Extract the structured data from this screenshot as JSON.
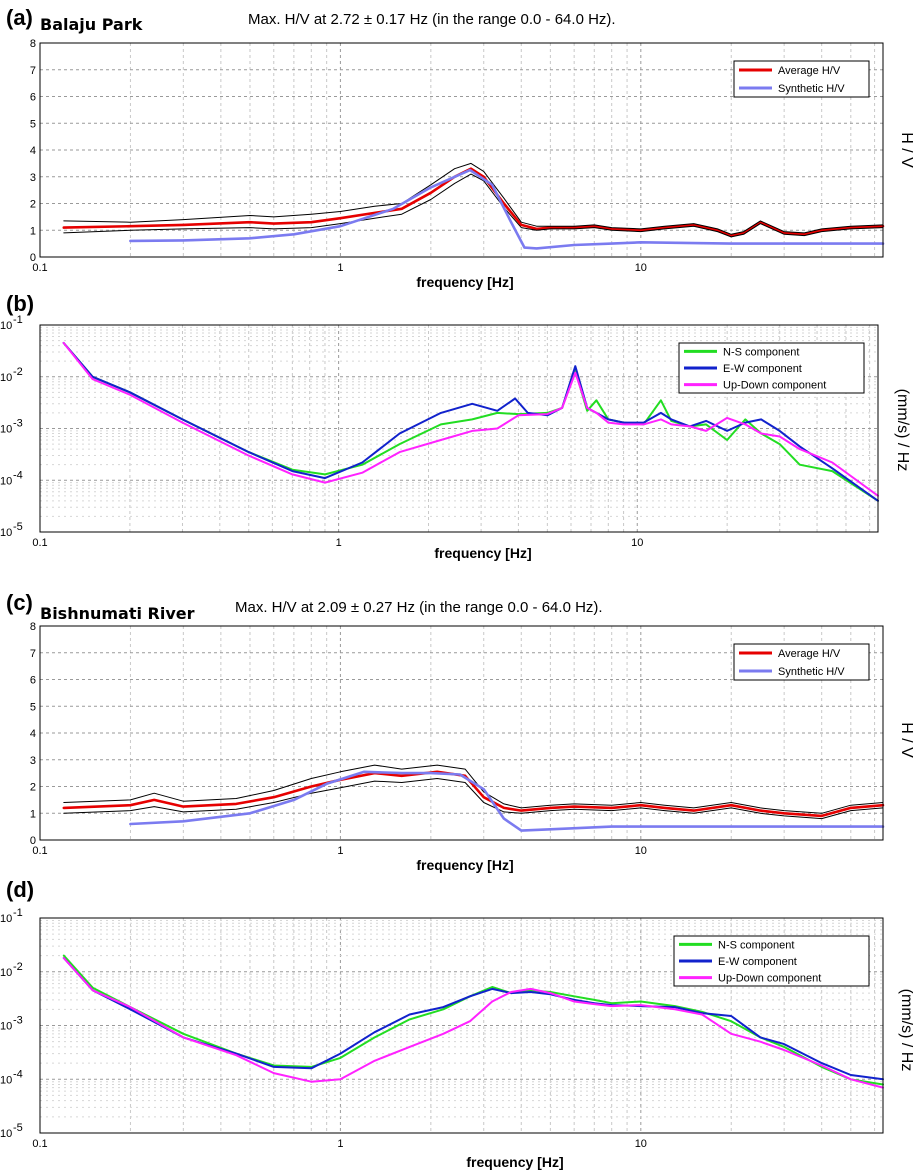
{
  "chart_data": [
    {
      "panel_label": "(a)",
      "site": "Balaju Park",
      "title": "Max. H/V at 2.72 ± 0.17 Hz (in the range 0.0 - 64.0 Hz).",
      "type": "line",
      "x_scale": "log",
      "y_scale": "linear",
      "xlabel": "frequency [Hz]",
      "ylabel": "H / V",
      "xlim": [
        0.1,
        64
      ],
      "ylim": [
        0,
        8
      ],
      "xticks": [
        "0.1",
        "1",
        "10"
      ],
      "yticks": [
        "0",
        "1",
        "2",
        "3",
        "4",
        "5",
        "6",
        "7",
        "8"
      ],
      "grid": true,
      "legend_position": "top-right",
      "series": [
        {
          "name": "Average H/V",
          "role": "legend",
          "color": "#e60000",
          "x": [
            0.12,
            0.2,
            0.3,
            0.5,
            0.6,
            0.8,
            1.0,
            1.3,
            1.6,
            2.0,
            2.4,
            2.72,
            3.0,
            3.5,
            4.0,
            4.5,
            5,
            6,
            7,
            8,
            10,
            12,
            15,
            18,
            20,
            22,
            25,
            30,
            35,
            40,
            50,
            64
          ],
          "y": [
            1.1,
            1.15,
            1.2,
            1.3,
            1.25,
            1.3,
            1.45,
            1.65,
            1.8,
            2.4,
            3.0,
            3.3,
            3.0,
            2.0,
            1.2,
            1.05,
            1.1,
            1.1,
            1.15,
            1.05,
            1.0,
            1.1,
            1.2,
            1.0,
            0.8,
            0.9,
            1.3,
            0.9,
            0.85,
            1.0,
            1.1,
            1.15
          ]
        },
        {
          "name": "+std",
          "role": "bound",
          "color": "#000000",
          "x": [
            0.12,
            0.2,
            0.3,
            0.5,
            0.6,
            0.8,
            1.0,
            1.3,
            1.6,
            2.0,
            2.4,
            2.72,
            3.0,
            3.5,
            4.0,
            4.5,
            5,
            6,
            7,
            8,
            10,
            12,
            15,
            18,
            20,
            22,
            25,
            30,
            35,
            40,
            50,
            64
          ],
          "y": [
            1.35,
            1.3,
            1.4,
            1.55,
            1.5,
            1.6,
            1.7,
            1.9,
            2.0,
            2.7,
            3.3,
            3.5,
            3.2,
            2.2,
            1.3,
            1.15,
            1.15,
            1.15,
            1.2,
            1.1,
            1.05,
            1.15,
            1.25,
            1.05,
            0.85,
            0.95,
            1.35,
            0.95,
            0.9,
            1.05,
            1.15,
            1.2
          ]
        },
        {
          "name": "-std",
          "role": "bound",
          "color": "#000000",
          "x": [
            0.12,
            0.2,
            0.3,
            0.5,
            0.6,
            0.8,
            1.0,
            1.3,
            1.6,
            2.0,
            2.4,
            2.72,
            3.0,
            3.5,
            4.0,
            4.5,
            5,
            6,
            7,
            8,
            10,
            12,
            15,
            18,
            20,
            22,
            25,
            30,
            35,
            40,
            50,
            64
          ],
          "y": [
            0.9,
            1.0,
            1.05,
            1.1,
            1.05,
            1.1,
            1.25,
            1.45,
            1.6,
            2.15,
            2.75,
            3.1,
            2.85,
            1.85,
            1.1,
            1.0,
            1.05,
            1.05,
            1.1,
            1.0,
            0.95,
            1.05,
            1.15,
            0.95,
            0.75,
            0.85,
            1.25,
            0.85,
            0.8,
            0.95,
            1.05,
            1.1
          ]
        },
        {
          "name": "Synthetic H/V",
          "role": "legend",
          "color": "#7b7bf0",
          "x": [
            0.2,
            0.3,
            0.5,
            0.7,
            1.0,
            1.5,
            2.0,
            2.7,
            3.2,
            3.7,
            4.1,
            4.5,
            6,
            8,
            10,
            15,
            20,
            30,
            64
          ],
          "y": [
            0.6,
            0.62,
            0.7,
            0.85,
            1.15,
            1.8,
            2.6,
            3.25,
            2.7,
            1.3,
            0.35,
            0.32,
            0.45,
            0.5,
            0.55,
            0.52,
            0.5,
            0.5,
            0.5
          ]
        }
      ]
    },
    {
      "panel_label": "(b)",
      "type": "line",
      "x_scale": "log",
      "y_scale": "log",
      "xlabel": "frequency [Hz]",
      "ylabel": "(mm/s) / Hz",
      "xlim": [
        0.1,
        64
      ],
      "ylim": [
        1e-05,
        0.1
      ],
      "xticks": [
        "0.1",
        "1",
        "10"
      ],
      "ytick_values": [
        1e-05,
        0.0001,
        0.001,
        0.01,
        0.1
      ],
      "ytick_exponents": [
        "-5",
        "-4",
        "-3",
        "-2",
        "-1"
      ],
      "ytick_base": "10",
      "grid": true,
      "legend_position": "top-right",
      "series": [
        {
          "name": "N-S component",
          "color": "#22dd22",
          "x": [
            0.12,
            0.15,
            0.2,
            0.3,
            0.5,
            0.7,
            0.9,
            1.2,
            1.6,
            2.2,
            2.8,
            3.4,
            4.0,
            5.0,
            5.6,
            6.2,
            6.8,
            7.3,
            8.0,
            9.0,
            10.5,
            12.0,
            13.0,
            15,
            17,
            20,
            23,
            26,
            30,
            35,
            45,
            64
          ],
          "y": [
            0.045,
            0.01,
            0.005,
            0.0015,
            0.00035,
            0.00016,
            0.00013,
            0.0002,
            0.0005,
            0.0012,
            0.0015,
            0.002,
            0.0019,
            0.002,
            0.0025,
            0.013,
            0.0022,
            0.0035,
            0.0015,
            0.0013,
            0.0012,
            0.0035,
            0.0014,
            0.0011,
            0.0012,
            0.0006,
            0.0015,
            0.0008,
            0.0005,
            0.0002,
            0.00015,
            4e-05
          ]
        },
        {
          "name": "E-W component",
          "color": "#1122cc",
          "x": [
            0.12,
            0.15,
            0.2,
            0.3,
            0.5,
            0.7,
            0.9,
            1.2,
            1.6,
            2.2,
            2.8,
            3.4,
            3.9,
            4.3,
            5.0,
            5.6,
            6.2,
            6.8,
            7.3,
            8.0,
            9.0,
            10.5,
            12.0,
            13.0,
            15,
            17,
            20,
            23,
            26,
            30,
            35,
            45,
            64
          ],
          "y": [
            0.045,
            0.01,
            0.005,
            0.0015,
            0.00035,
            0.00015,
            0.00011,
            0.00022,
            0.0008,
            0.002,
            0.003,
            0.0022,
            0.0038,
            0.002,
            0.0018,
            0.0025,
            0.016,
            0.0025,
            0.002,
            0.0015,
            0.0013,
            0.0013,
            0.002,
            0.0015,
            0.0011,
            0.0014,
            0.0009,
            0.0013,
            0.0015,
            0.0009,
            0.00045,
            0.00017,
            4e-05
          ]
        },
        {
          "name": "Up-Down component",
          "color": "#ff22ff",
          "x": [
            0.12,
            0.15,
            0.2,
            0.3,
            0.5,
            0.7,
            0.9,
            1.2,
            1.6,
            2.2,
            2.8,
            3.4,
            4.0,
            5.0,
            5.6,
            6.2,
            6.8,
            7.3,
            8.0,
            9.0,
            10.5,
            12.0,
            13.0,
            15,
            17,
            20,
            23,
            26,
            30,
            35,
            45,
            64
          ],
          "y": [
            0.045,
            0.009,
            0.0045,
            0.0013,
            0.0003,
            0.00013,
            9e-05,
            0.00014,
            0.00035,
            0.0006,
            0.0009,
            0.001,
            0.0018,
            0.0019,
            0.0025,
            0.012,
            0.0025,
            0.002,
            0.0013,
            0.0012,
            0.0012,
            0.0015,
            0.0012,
            0.0011,
            0.0009,
            0.0016,
            0.0012,
            0.0008,
            0.0007,
            0.0004,
            0.00022,
            5e-05
          ]
        }
      ]
    },
    {
      "panel_label": "(c)",
      "site": "Bishnumati River",
      "title": "Max. H/V at 2.09 ± 0.27 Hz (in the range 0.0 - 64.0 Hz).",
      "type": "line",
      "x_scale": "log",
      "y_scale": "linear",
      "xlabel": "frequency [Hz]",
      "ylabel": "H / V",
      "xlim": [
        0.1,
        64
      ],
      "ylim": [
        0,
        8
      ],
      "xticks": [
        "0.1",
        "1",
        "10"
      ],
      "yticks": [
        "0",
        "1",
        "2",
        "3",
        "4",
        "5",
        "6",
        "7",
        "8"
      ],
      "grid": true,
      "legend_position": "top-right",
      "series": [
        {
          "name": "Average H/V",
          "role": "legend",
          "color": "#e60000",
          "x": [
            0.12,
            0.2,
            0.24,
            0.3,
            0.45,
            0.6,
            0.8,
            1.0,
            1.3,
            1.6,
            2.1,
            2.6,
            3.0,
            3.5,
            4.0,
            5,
            6,
            8,
            10,
            12,
            15,
            20,
            25,
            30,
            40,
            50,
            64
          ],
          "y": [
            1.2,
            1.3,
            1.5,
            1.25,
            1.35,
            1.6,
            2.0,
            2.25,
            2.5,
            2.4,
            2.55,
            2.4,
            1.6,
            1.2,
            1.1,
            1.2,
            1.25,
            1.2,
            1.3,
            1.2,
            1.1,
            1.3,
            1.1,
            1.0,
            0.9,
            1.2,
            1.3
          ]
        },
        {
          "name": "+std",
          "role": "bound",
          "color": "#000000",
          "x": [
            0.12,
            0.2,
            0.24,
            0.3,
            0.45,
            0.6,
            0.8,
            1.0,
            1.3,
            1.6,
            2.1,
            2.6,
            3.0,
            3.5,
            4.0,
            5,
            6,
            8,
            10,
            12,
            15,
            20,
            25,
            30,
            40,
            50,
            64
          ],
          "y": [
            1.4,
            1.5,
            1.75,
            1.45,
            1.55,
            1.85,
            2.3,
            2.55,
            2.8,
            2.65,
            2.8,
            2.65,
            1.8,
            1.35,
            1.2,
            1.3,
            1.35,
            1.3,
            1.4,
            1.3,
            1.2,
            1.4,
            1.2,
            1.1,
            1.0,
            1.3,
            1.4
          ]
        },
        {
          "name": "-std",
          "role": "bound",
          "color": "#000000",
          "x": [
            0.12,
            0.2,
            0.24,
            0.3,
            0.45,
            0.6,
            0.8,
            1.0,
            1.3,
            1.6,
            2.1,
            2.6,
            3.0,
            3.5,
            4.0,
            5,
            6,
            8,
            10,
            12,
            15,
            20,
            25,
            30,
            40,
            50,
            64
          ],
          "y": [
            1.0,
            1.1,
            1.25,
            1.05,
            1.15,
            1.4,
            1.75,
            1.95,
            2.2,
            2.15,
            2.3,
            2.15,
            1.4,
            1.05,
            1.0,
            1.1,
            1.15,
            1.1,
            1.2,
            1.1,
            1.0,
            1.2,
            1.0,
            0.9,
            0.8,
            1.1,
            1.2
          ]
        },
        {
          "name": "Synthetic H/V",
          "role": "legend",
          "color": "#7b7bf0",
          "x": [
            0.2,
            0.3,
            0.5,
            0.7,
            0.9,
            1.2,
            1.6,
            2.0,
            2.5,
            3.0,
            3.5,
            4.0,
            5,
            8,
            12,
            20,
            30,
            64
          ],
          "y": [
            0.6,
            0.7,
            1.0,
            1.5,
            2.1,
            2.55,
            2.5,
            2.5,
            2.45,
            1.9,
            0.8,
            0.35,
            0.4,
            0.5,
            0.5,
            0.5,
            0.5,
            0.5
          ]
        }
      ]
    },
    {
      "panel_label": "(d)",
      "type": "line",
      "x_scale": "log",
      "y_scale": "log",
      "xlabel": "frequency [Hz]",
      "ylabel": "(mm/s) / Hz",
      "xlim": [
        0.1,
        64
      ],
      "ylim": [
        1e-05,
        0.1
      ],
      "xticks": [
        "0.1",
        "1",
        "10"
      ],
      "ytick_values": [
        1e-05,
        0.0001,
        0.001,
        0.01,
        0.1
      ],
      "ytick_exponents": [
        "-5",
        "-4",
        "-3",
        "-2",
        "-1"
      ],
      "ytick_base": "10",
      "grid": true,
      "legend_position": "top-right",
      "series": [
        {
          "name": "N-S component",
          "color": "#22dd22",
          "x": [
            0.12,
            0.15,
            0.2,
            0.3,
            0.45,
            0.6,
            0.8,
            1.0,
            1.3,
            1.7,
            2.2,
            2.7,
            3.2,
            3.7,
            4.3,
            5,
            6,
            7,
            8,
            10,
            13,
            16,
            20,
            25,
            30,
            40,
            50,
            64
          ],
          "y": [
            0.02,
            0.005,
            0.0022,
            0.0007,
            0.0003,
            0.00018,
            0.00017,
            0.00025,
            0.0006,
            0.0013,
            0.002,
            0.0035,
            0.0052,
            0.004,
            0.0045,
            0.0042,
            0.0035,
            0.003,
            0.0026,
            0.0028,
            0.0023,
            0.0018,
            0.0012,
            0.0006,
            0.0004,
            0.00017,
            0.0001,
            8e-05
          ]
        },
        {
          "name": "E-W component",
          "color": "#1122cc",
          "x": [
            0.12,
            0.15,
            0.2,
            0.3,
            0.45,
            0.6,
            0.8,
            1.0,
            1.3,
            1.7,
            2.2,
            2.7,
            3.2,
            3.7,
            4.3,
            5,
            6,
            7,
            8,
            10,
            13,
            16,
            20,
            25,
            30,
            40,
            50,
            64
          ],
          "y": [
            0.018,
            0.0045,
            0.002,
            0.0006,
            0.0003,
            0.00017,
            0.00016,
            0.0003,
            0.00075,
            0.0016,
            0.0022,
            0.0035,
            0.0048,
            0.004,
            0.0042,
            0.0038,
            0.003,
            0.0026,
            0.0024,
            0.0023,
            0.0022,
            0.0017,
            0.0015,
            0.0006,
            0.00045,
            0.0002,
            0.00012,
            0.0001
          ]
        },
        {
          "name": "Up-Down component",
          "color": "#ff22ff",
          "x": [
            0.12,
            0.15,
            0.2,
            0.3,
            0.45,
            0.6,
            0.8,
            1.0,
            1.3,
            1.7,
            2.2,
            2.7,
            3.2,
            3.7,
            4.3,
            5,
            6,
            7,
            8,
            10,
            13,
            16,
            20,
            25,
            30,
            40,
            50,
            64
          ],
          "y": [
            0.018,
            0.0045,
            0.0022,
            0.0006,
            0.00028,
            0.00013,
            9e-05,
            0.0001,
            0.00022,
            0.0004,
            0.0007,
            0.0012,
            0.0028,
            0.0042,
            0.0048,
            0.004,
            0.0028,
            0.0025,
            0.0023,
            0.0024,
            0.002,
            0.0016,
            0.0007,
            0.0005,
            0.00035,
            0.00018,
            0.0001,
            7e-05
          ]
        }
      ]
    }
  ]
}
